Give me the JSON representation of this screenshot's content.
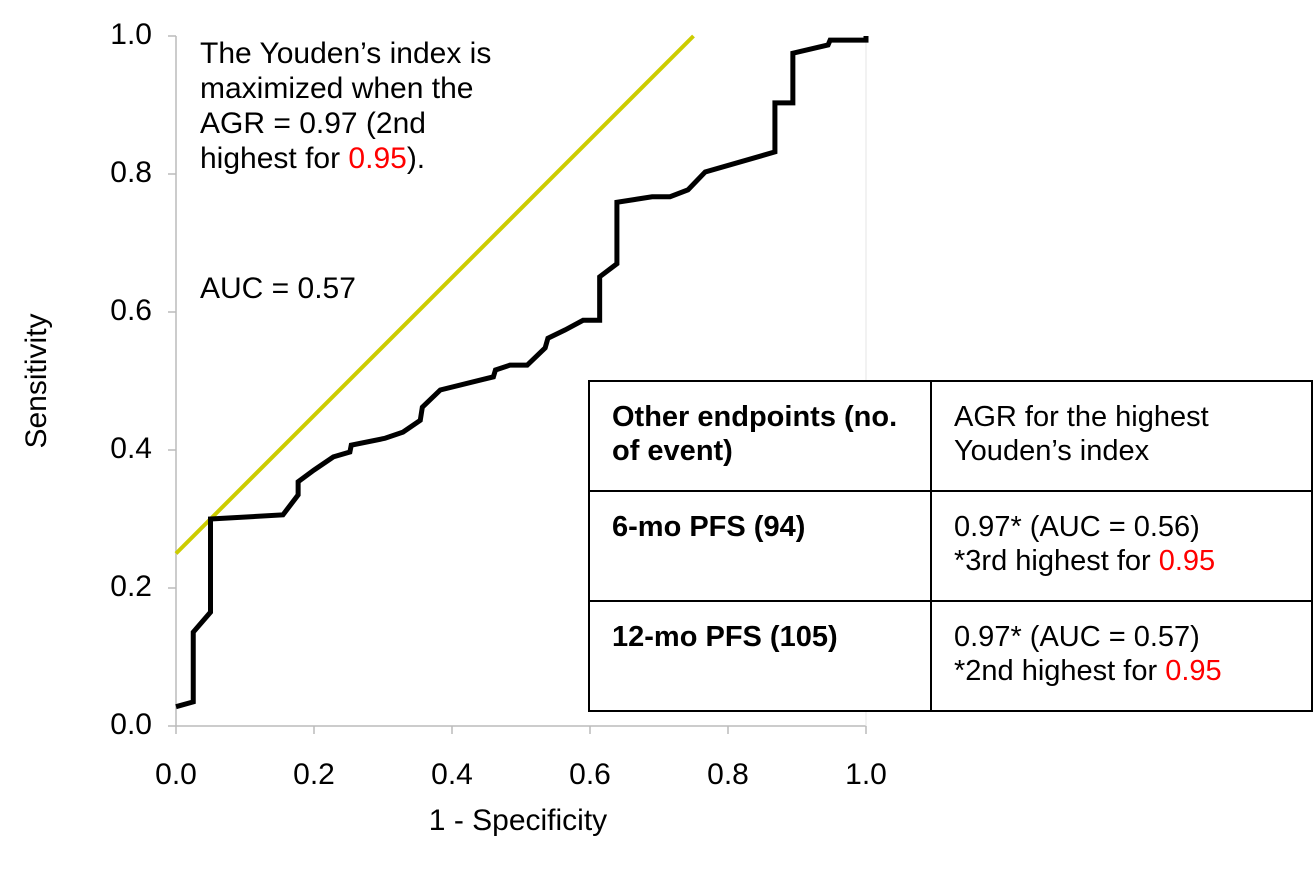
{
  "chart_data": {
    "type": "line",
    "xlabel": "1 - Specificity",
    "ylabel": "Sensitivity",
    "xlim": [
      0,
      1.0
    ],
    "ylim": [
      0,
      1.0
    ],
    "xticks": [
      {
        "value": 0,
        "label": "0.0"
      },
      0.2,
      0.4,
      0.6,
      0.8,
      {
        "value": 1.0,
        "label": "1.0"
      }
    ],
    "yticks": [
      {
        "value": 0,
        "label": "0.0"
      },
      0.2,
      0.4,
      0.6,
      0.8,
      {
        "value": 1.0,
        "label": "1.0"
      }
    ],
    "grid": false,
    "series": [
      {
        "color": "#000000",
        "x": [
          0,
          0.025,
          0.025,
          0.05,
          0.05,
          0.155,
          0.177,
          0.177,
          0.2,
          0.228,
          0.252,
          0.254,
          0.303,
          0.329,
          0.354,
          0.357,
          0.383,
          0.46,
          0.463,
          0.484,
          0.509,
          0.535,
          0.539,
          0.564,
          0.59,
          0.614,
          0.614,
          0.639,
          0.639,
          0.69,
          0.716,
          0.742,
          0.767,
          0.868,
          0.868,
          0.894,
          0.894,
          0.945,
          0.948,
          1.0,
          1.0
        ],
        "values": [
          0.028,
          0.035,
          0.136,
          0.165,
          0.3,
          0.306,
          0.335,
          0.354,
          0.371,
          0.39,
          0.397,
          0.407,
          0.417,
          0.426,
          0.443,
          0.462,
          0.487,
          0.506,
          0.516,
          0.523,
          0.523,
          0.548,
          0.562,
          0.574,
          0.588,
          0.588,
          0.651,
          0.67,
          0.759,
          0.767,
          0.767,
          0.777,
          0.803,
          0.832,
          0.903,
          0.903,
          0.975,
          0.987,
          0.994,
          0.994,
          1.0
        ]
      },
      {
        "color": "#cccc00",
        "x": [
          0,
          0.75
        ],
        "values": [
          0.25,
          1.0
        ]
      }
    ],
    "annotation": {
      "lines": [
        "The Youden’s index is",
        "maximized when the",
        "AGR = 0.97 (2nd"
      ],
      "last": [
        "highest for ",
        "0.95",
        ")."
      ],
      "auc": "AUC = 0.57"
    },
    "highlight_color": "#ff0000"
  },
  "table": {
    "header": [
      "Other endpoints (no. of event)",
      "AGR for the highest Youden’s index"
    ],
    "rows": [
      {
        "label": "6-mo PFS (94)",
        "value": "0.97* (AUC = 0.56)",
        "note": [
          "*3rd highest for ",
          "0.95"
        ]
      },
      {
        "label": "12-mo PFS (105)",
        "value": "0.97* (AUC = 0.57)",
        "note": [
          "*2nd highest for ",
          "0.95"
        ]
      }
    ]
  }
}
